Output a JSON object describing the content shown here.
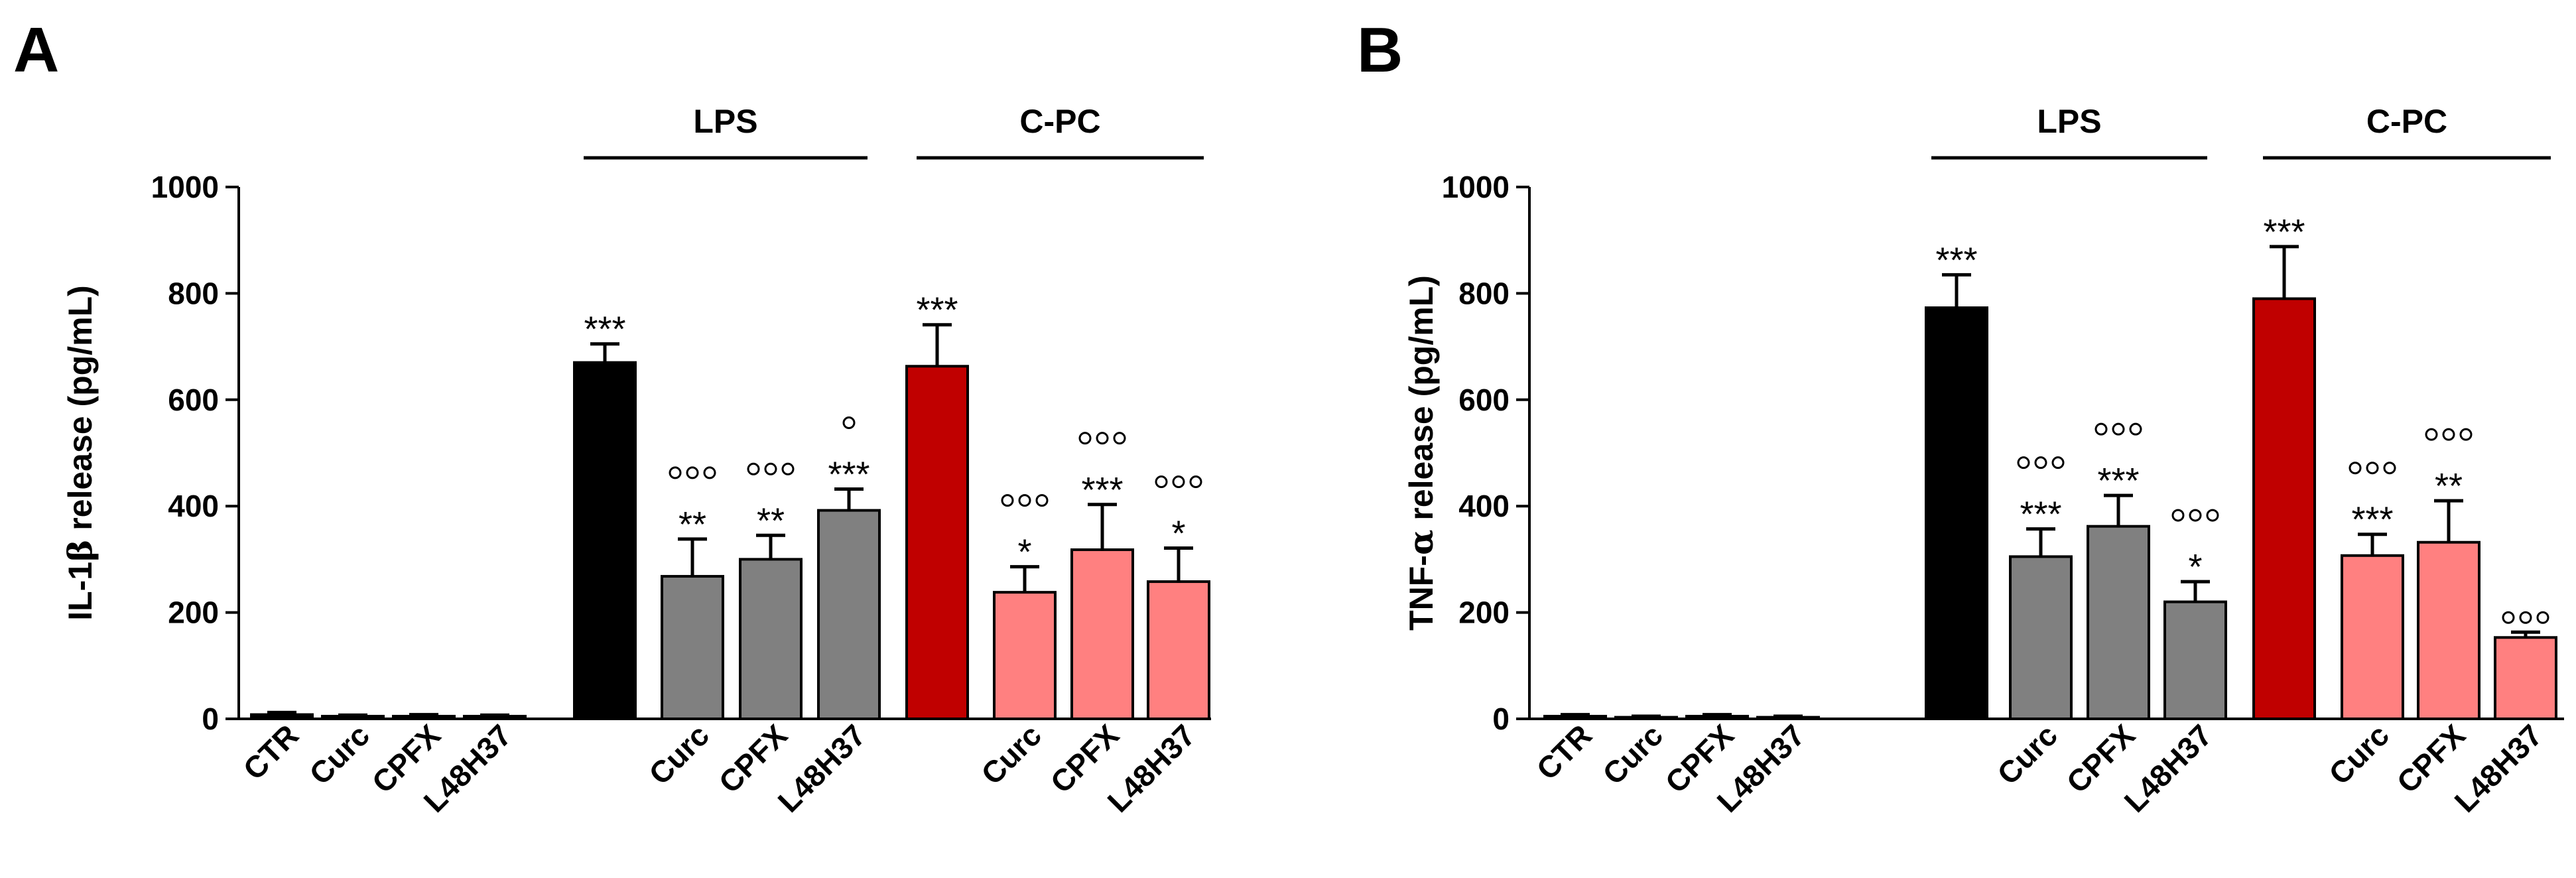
{
  "chart_data": [
    {
      "panel": "A",
      "type": "bar",
      "ylabel_prefix": "IL-1",
      "ylabel_greek": "β",
      "ylabel_suffix": " release (pg/mL)",
      "ylim": [
        0,
        1000
      ],
      "yticks": [
        "0",
        "200",
        "400",
        "600",
        "800",
        "1000"
      ],
      "group_labels": [
        "LPS",
        "C-PC"
      ],
      "bars": [
        {
          "label": "CTR",
          "value": 8,
          "err": 4,
          "color": "#000000",
          "stars": "",
          "circles": ""
        },
        {
          "label": "Curc",
          "value": 5,
          "err": 2,
          "color": "#000000",
          "stars": "",
          "circles": ""
        },
        {
          "label": "CPFX",
          "value": 5,
          "err": 3,
          "color": "#000000",
          "stars": "",
          "circles": ""
        },
        {
          "label": "L48H37",
          "value": 5,
          "err": 2,
          "color": "#000000",
          "stars": "",
          "circles": ""
        },
        {
          "label": "",
          "value": 670,
          "err": 35,
          "color": "#000000",
          "stars": "***",
          "circles": ""
        },
        {
          "label": "Curc",
          "value": 268,
          "err": 70,
          "color": "#808080",
          "stars": "**",
          "circles": "ooo"
        },
        {
          "label": "CPFX",
          "value": 300,
          "err": 45,
          "color": "#808080",
          "stars": "**",
          "circles": "ooo"
        },
        {
          "label": "L48H37",
          "value": 392,
          "err": 40,
          "color": "#808080",
          "stars": "***",
          "circles": "o"
        },
        {
          "label": "",
          "value": 663,
          "err": 78,
          "color": "#c00000",
          "stars": "***",
          "circles": ""
        },
        {
          "label": "Curc",
          "value": 238,
          "err": 48,
          "color": "#ff8080",
          "stars": "*",
          "circles": "ooo"
        },
        {
          "label": "CPFX",
          "value": 318,
          "err": 85,
          "color": "#ff8080",
          "stars": "***",
          "circles": "ooo"
        },
        {
          "label": "L48H37",
          "value": 258,
          "err": 63,
          "color": "#ff8080",
          "stars": "*",
          "circles": "ooo"
        }
      ]
    },
    {
      "panel": "B",
      "type": "bar",
      "ylabel_prefix": "TNF-",
      "ylabel_greek": "α",
      "ylabel_suffix": " release (pg/mL)",
      "ylim": [
        0,
        1000
      ],
      "yticks": [
        "0",
        "200",
        "400",
        "600",
        "800",
        "1000"
      ],
      "group_labels": [
        "LPS",
        "C-PC"
      ],
      "bars": [
        {
          "label": "CTR",
          "value": 5,
          "err": 3,
          "color": "#000000",
          "stars": "",
          "circles": ""
        },
        {
          "label": "Curc",
          "value": 3,
          "err": 2,
          "color": "#000000",
          "stars": "",
          "circles": ""
        },
        {
          "label": "CPFX",
          "value": 5,
          "err": 3,
          "color": "#000000",
          "stars": "",
          "circles": ""
        },
        {
          "label": "L48H37",
          "value": 3,
          "err": 2,
          "color": "#000000",
          "stars": "",
          "circles": ""
        },
        {
          "label": "",
          "value": 773,
          "err": 62,
          "color": "#000000",
          "stars": "***",
          "circles": ""
        },
        {
          "label": "Curc",
          "value": 305,
          "err": 52,
          "color": "#808080",
          "stars": "***",
          "circles": "ooo"
        },
        {
          "label": "CPFX",
          "value": 362,
          "err": 58,
          "color": "#808080",
          "stars": "***",
          "circles": "ooo"
        },
        {
          "label": "L48H37",
          "value": 220,
          "err": 38,
          "color": "#808080",
          "stars": "*",
          "circles": "ooo"
        },
        {
          "label": "",
          "value": 790,
          "err": 98,
          "color": "#c00000",
          "stars": "***",
          "circles": ""
        },
        {
          "label": "Curc",
          "value": 307,
          "err": 40,
          "color": "#ff8080",
          "stars": "***",
          "circles": "ooo"
        },
        {
          "label": "CPFX",
          "value": 332,
          "err": 78,
          "color": "#ff8080",
          "stars": "**",
          "circles": "ooo"
        },
        {
          "label": "L48H37",
          "value": 153,
          "err": 10,
          "color": "#ff8080",
          "stars": "",
          "circles": "ooo"
        }
      ]
    }
  ]
}
